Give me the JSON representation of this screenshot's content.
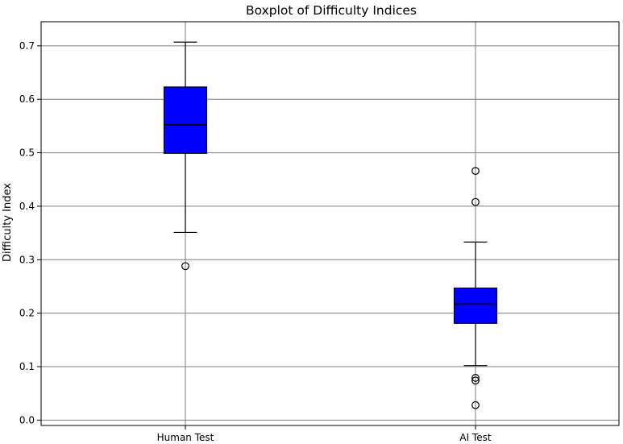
{
  "chart_data": {
    "type": "box",
    "title": "Boxplot of Difficulty Indices",
    "xlabel": "",
    "ylabel": "Difficulty Index",
    "categories": [
      "Human Test",
      "AI Test"
    ],
    "ylim": [
      -0.01,
      0.745
    ],
    "yticks": [
      0.0,
      0.1,
      0.2,
      0.3,
      0.4,
      0.5,
      0.6,
      0.7
    ],
    "ytick_labels": [
      "0.0",
      "0.1",
      "0.2",
      "0.3",
      "0.4",
      "0.5",
      "0.6",
      "0.7"
    ],
    "grid": true,
    "box_color": "#0000ff",
    "edge_color": "#000000",
    "boxes": [
      {
        "category": "Human Test",
        "whisker_low": 0.351,
        "q1": 0.499,
        "median": 0.552,
        "q3": 0.623,
        "whisker_high": 0.707,
        "outliers": [
          0.288
        ]
      },
      {
        "category": "AI Test",
        "whisker_low": 0.102,
        "q1": 0.181,
        "median": 0.217,
        "q3": 0.247,
        "whisker_high": 0.333,
        "outliers": [
          0.466,
          0.408,
          0.079,
          0.074,
          0.028
        ]
      }
    ]
  }
}
